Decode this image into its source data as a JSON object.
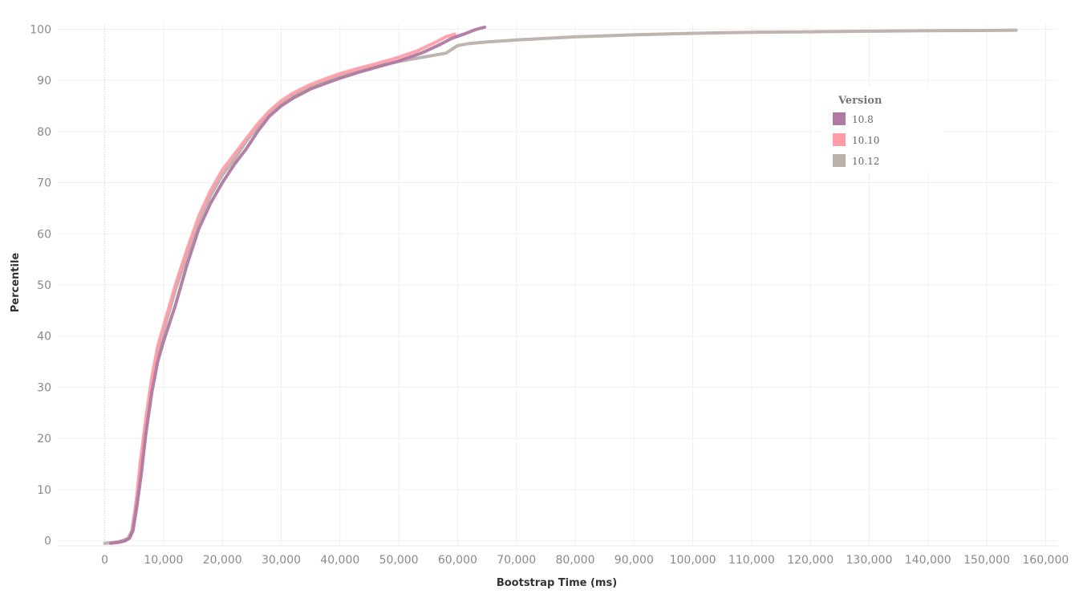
{
  "chart_data": {
    "type": "line",
    "title": "",
    "xlabel": "Bootstrap Time (ms)",
    "ylabel": "Percentile",
    "xlim": [
      -8000,
      162000
    ],
    "ylim": [
      -1,
      101
    ],
    "x_ticks": [
      0,
      10000,
      20000,
      30000,
      40000,
      50000,
      60000,
      70000,
      80000,
      90000,
      100000,
      110000,
      120000,
      130000,
      140000,
      150000,
      160000
    ],
    "x_tick_labels": [
      "0",
      "10,000",
      "20,000",
      "30,000",
      "40,000",
      "50,000",
      "60,000",
      "70,000",
      "80,000",
      "90,000",
      "100,000",
      "110,000",
      "120,000",
      "130,000",
      "140,000",
      "150,000",
      "160,000"
    ],
    "y_ticks": [
      0,
      10,
      20,
      30,
      40,
      50,
      60,
      70,
      80,
      90,
      100
    ],
    "y_tick_labels": [
      "0",
      "10",
      "20",
      "30",
      "40",
      "50",
      "60",
      "70",
      "80",
      "90",
      "100"
    ],
    "grid": true,
    "legend": {
      "title": "Version",
      "placement": "top-right"
    },
    "series": [
      {
        "name": "10.8",
        "color": "#b07aa1",
        "points": [
          [
            1000,
            -0.5
          ],
          [
            2500,
            -0.3
          ],
          [
            3500,
            0
          ],
          [
            4200,
            0.5
          ],
          [
            4800,
            2
          ],
          [
            5500,
            7
          ],
          [
            6200,
            13
          ],
          [
            7000,
            21
          ],
          [
            8000,
            29
          ],
          [
            9000,
            35
          ],
          [
            10000,
            39
          ],
          [
            12000,
            46
          ],
          [
            14000,
            54
          ],
          [
            16000,
            61
          ],
          [
            18000,
            66
          ],
          [
            20000,
            70
          ],
          [
            22000,
            73.5
          ],
          [
            24000,
            76.5
          ],
          [
            26000,
            80
          ],
          [
            28000,
            83
          ],
          [
            30000,
            85
          ],
          [
            32000,
            86.5
          ],
          [
            35000,
            88.3
          ],
          [
            38000,
            89.6
          ],
          [
            40000,
            90.4
          ],
          [
            43000,
            91.5
          ],
          [
            46000,
            92.5
          ],
          [
            50000,
            93.8
          ],
          [
            54000,
            95.4
          ],
          [
            57000,
            97
          ],
          [
            59000,
            98.2
          ],
          [
            61000,
            99
          ],
          [
            63000,
            99.9
          ],
          [
            64600,
            100.4
          ]
        ]
      },
      {
        "name": "10.10",
        "color": "#ff9da7",
        "points": [
          [
            1000,
            -0.5
          ],
          [
            2500,
            -0.3
          ],
          [
            3500,
            0
          ],
          [
            4200,
            0.5
          ],
          [
            4800,
            2
          ],
          [
            5300,
            7
          ],
          [
            6000,
            15
          ],
          [
            7000,
            24
          ],
          [
            8000,
            32
          ],
          [
            9000,
            38
          ],
          [
            10000,
            42
          ],
          [
            12000,
            50
          ],
          [
            14000,
            57
          ],
          [
            16000,
            63.5
          ],
          [
            18000,
            68.5
          ],
          [
            20000,
            72.5
          ],
          [
            22000,
            75.5
          ],
          [
            24000,
            78.5
          ],
          [
            26000,
            81.5
          ],
          [
            28000,
            84
          ],
          [
            30000,
            86
          ],
          [
            32000,
            87.5
          ],
          [
            35000,
            89.2
          ],
          [
            38000,
            90.5
          ],
          [
            40000,
            91.3
          ],
          [
            43000,
            92.3
          ],
          [
            46000,
            93.2
          ],
          [
            50000,
            94.5
          ],
          [
            53000,
            95.7
          ],
          [
            56000,
            97.3
          ],
          [
            58000,
            98.5
          ],
          [
            59500,
            99
          ]
        ]
      },
      {
        "name": "10.12",
        "color": "#bab0ac",
        "points": [
          [
            0,
            -0.5
          ],
          [
            2000,
            -0.3
          ],
          [
            3000,
            0
          ],
          [
            4000,
            0.5
          ],
          [
            4600,
            2
          ],
          [
            5200,
            6.5
          ],
          [
            6000,
            14
          ],
          [
            7000,
            23
          ],
          [
            8000,
            31
          ],
          [
            9000,
            37
          ],
          [
            10000,
            41
          ],
          [
            12000,
            49
          ],
          [
            14000,
            56
          ],
          [
            16000,
            62.5
          ],
          [
            18000,
            67.5
          ],
          [
            20000,
            71.5
          ],
          [
            22000,
            74.5
          ],
          [
            24000,
            78
          ],
          [
            26000,
            81
          ],
          [
            28000,
            83.5
          ],
          [
            30000,
            85.5
          ],
          [
            32000,
            87
          ],
          [
            35000,
            88.7
          ],
          [
            38000,
            90
          ],
          [
            40000,
            90.8
          ],
          [
            43000,
            91.8
          ],
          [
            46000,
            92.7
          ],
          [
            50000,
            93.7
          ],
          [
            54000,
            94.5
          ],
          [
            58000,
            95.3
          ],
          [
            60000,
            96.8
          ],
          [
            62000,
            97.2
          ],
          [
            65000,
            97.5
          ],
          [
            70000,
            97.9
          ],
          [
            80000,
            98.5
          ],
          [
            90000,
            98.9
          ],
          [
            100000,
            99.2
          ],
          [
            110000,
            99.4
          ],
          [
            120000,
            99.5
          ],
          [
            130000,
            99.6
          ],
          [
            140000,
            99.7
          ],
          [
            150000,
            99.75
          ],
          [
            155000,
            99.8
          ]
        ]
      }
    ]
  }
}
